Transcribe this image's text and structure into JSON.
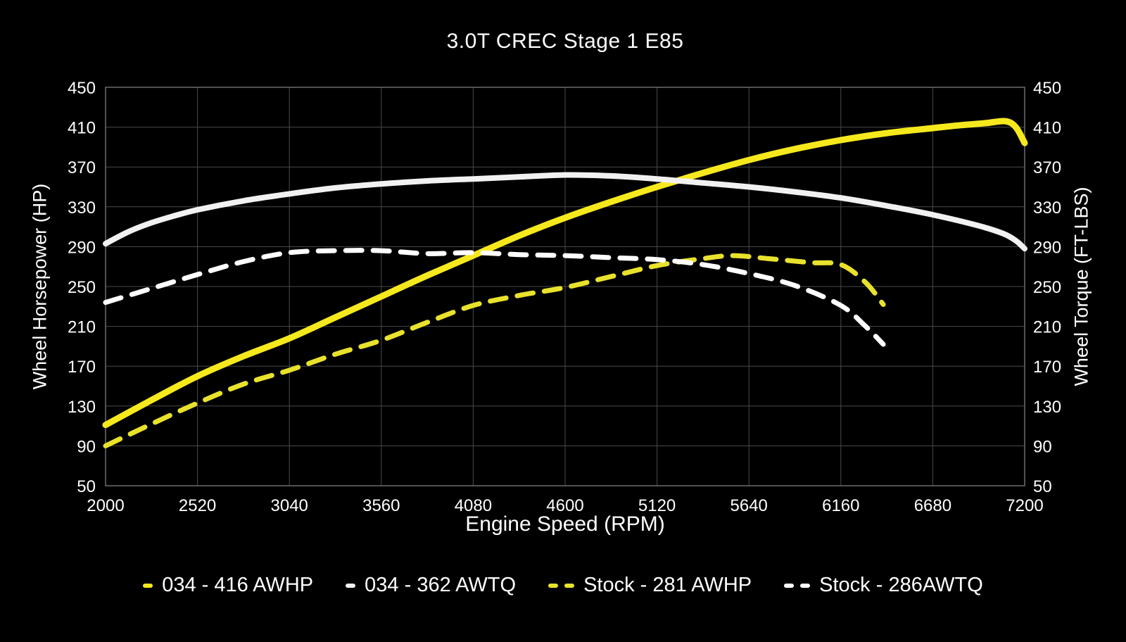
{
  "chart_data": {
    "type": "line",
    "title": "3.0T CREC Stage 1 E85",
    "xlabel": "Engine Speed (RPM)",
    "ylabel_left": "Wheel Horsepower (HP)",
    "ylabel_right": "Wheel Torque (FT-LBS)",
    "xlim": [
      2000,
      7200
    ],
    "ylim": [
      50,
      450
    ],
    "xticks": [
      2000,
      2520,
      3040,
      3560,
      4080,
      4600,
      5120,
      5640,
      6160,
      6680,
      7200
    ],
    "yticks": [
      50,
      90,
      130,
      170,
      210,
      250,
      290,
      330,
      370,
      410,
      450
    ],
    "grid": true,
    "legend_position": "bottom",
    "colors": {
      "background": "#000000",
      "grid": "#4a4a4a",
      "border": "#6e6e6e",
      "text": "#ffffff"
    },
    "series": [
      {
        "name": "034 - 416 AWHP",
        "axis": "left",
        "color": "#f5e91d",
        "style": "solid",
        "width": 9,
        "x": [
          2000,
          2260,
          2520,
          2780,
          3040,
          3300,
          3560,
          3820,
          4080,
          4340,
          4600,
          4860,
          5120,
          5380,
          5640,
          5900,
          6160,
          6420,
          6680,
          6840,
          6980,
          7090,
          7150,
          7200
        ],
        "y": [
          111,
          136,
          160,
          180,
          198,
          219,
          240,
          261,
          281,
          301,
          319,
          335,
          350,
          364,
          377,
          388,
          397,
          404,
          409,
          412,
          414,
          416,
          410,
          394
        ]
      },
      {
        "name": "034 - 362 AWTQ",
        "axis": "right",
        "color": "#f1f1f1",
        "style": "solid",
        "width": 8,
        "x": [
          2000,
          2130,
          2260,
          2390,
          2520,
          2780,
          3040,
          3300,
          3560,
          3820,
          4080,
          4340,
          4600,
          4860,
          5120,
          5380,
          5640,
          5900,
          6160,
          6420,
          6680,
          6940,
          7080,
          7150,
          7200
        ],
        "y": [
          293,
          305,
          314,
          321,
          327,
          336,
          343,
          349,
          353,
          356,
          358,
          360,
          362,
          361,
          358,
          354,
          350,
          345,
          339,
          331,
          322,
          311,
          303,
          296,
          288
        ]
      },
      {
        "name": "Stock - 281 AWHP",
        "axis": "left",
        "color": "#e9e22c",
        "style": "dashed",
        "width": 7,
        "x": [
          2000,
          2260,
          2520,
          2780,
          3040,
          3300,
          3560,
          3820,
          4080,
          4340,
          4600,
          4860,
          5120,
          5380,
          5550,
          5750,
          5990,
          6160,
          6300,
          6400
        ],
        "y": [
          90,
          112,
          133,
          152,
          166,
          182,
          196,
          214,
          231,
          241,
          249,
          260,
          271,
          278,
          281,
          278,
          274,
          272,
          254,
          232
        ]
      },
      {
        "name": "Stock - 286AWTQ",
        "axis": "right",
        "color": "#ffffff",
        "style": "dashed",
        "width": 7,
        "x": [
          2000,
          2260,
          2520,
          2780,
          3040,
          3300,
          3560,
          3820,
          4080,
          4340,
          4600,
          4860,
          5120,
          5380,
          5640,
          5900,
          6160,
          6300,
          6400
        ],
        "y": [
          234,
          248,
          262,
          275,
          284,
          286,
          286,
          283,
          284,
          282,
          281,
          279,
          277,
          272,
          263,
          251,
          231,
          210,
          192
        ]
      }
    ]
  }
}
